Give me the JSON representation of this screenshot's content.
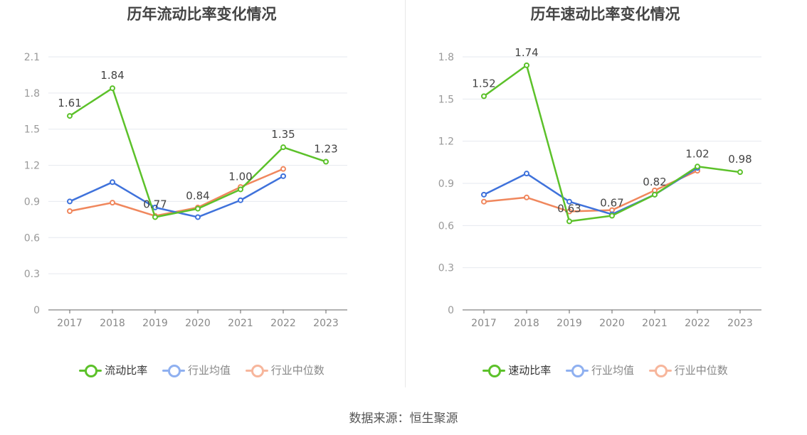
{
  "source": "数据来源：恒生聚源",
  "chart_data": [
    {
      "type": "line",
      "title": "历年流动比率变化情况",
      "categories": [
        "2017",
        "2018",
        "2019",
        "2020",
        "2021",
        "2022",
        "2023"
      ],
      "ylim": [
        0,
        2.1
      ],
      "yticks": [
        "0",
        "0.3",
        "0.6",
        "0.9",
        "1.2",
        "1.5",
        "1.8",
        "2.1"
      ],
      "grid": true,
      "legend_position": "bottom",
      "series": [
        {
          "name": "流动比率",
          "color": "#5cc12a",
          "values": [
            1.61,
            1.84,
            0.77,
            0.84,
            1.0,
            1.35,
            1.23
          ],
          "labels": [
            "1.61",
            "1.84",
            "0.77",
            "0.84",
            "1.00",
            "1.35",
            "1.23"
          ]
        },
        {
          "name": "行业均值",
          "color": "#3f72db",
          "values": [
            0.9,
            1.06,
            0.85,
            0.77,
            0.91,
            1.11,
            null
          ]
        },
        {
          "name": "行业中位数",
          "color": "#f0875d",
          "values": [
            0.82,
            0.89,
            0.78,
            0.85,
            1.02,
            1.17,
            null
          ]
        }
      ]
    },
    {
      "type": "line",
      "title": "历年速动比率变化情况",
      "categories": [
        "2017",
        "2018",
        "2019",
        "2020",
        "2021",
        "2022",
        "2023"
      ],
      "ylim": [
        0,
        1.8
      ],
      "yticks": [
        "0",
        "0.3",
        "0.6",
        "0.9",
        "1.2",
        "1.5",
        "1.8"
      ],
      "grid": true,
      "legend_position": "bottom",
      "series": [
        {
          "name": "速动比率",
          "color": "#5cc12a",
          "values": [
            1.52,
            1.74,
            0.63,
            0.67,
            0.82,
            1.02,
            0.98
          ],
          "labels": [
            "1.52",
            "1.74",
            "0.63",
            "0.67",
            "0.82",
            "1.02",
            "0.98"
          ]
        },
        {
          "name": "行业均值",
          "color": "#3f72db",
          "values": [
            0.82,
            0.97,
            0.77,
            0.68,
            0.82,
            1.01,
            null
          ]
        },
        {
          "name": "行业中位数",
          "color": "#f0875d",
          "values": [
            0.77,
            0.8,
            0.7,
            0.71,
            0.85,
            0.99,
            null
          ]
        }
      ]
    }
  ]
}
